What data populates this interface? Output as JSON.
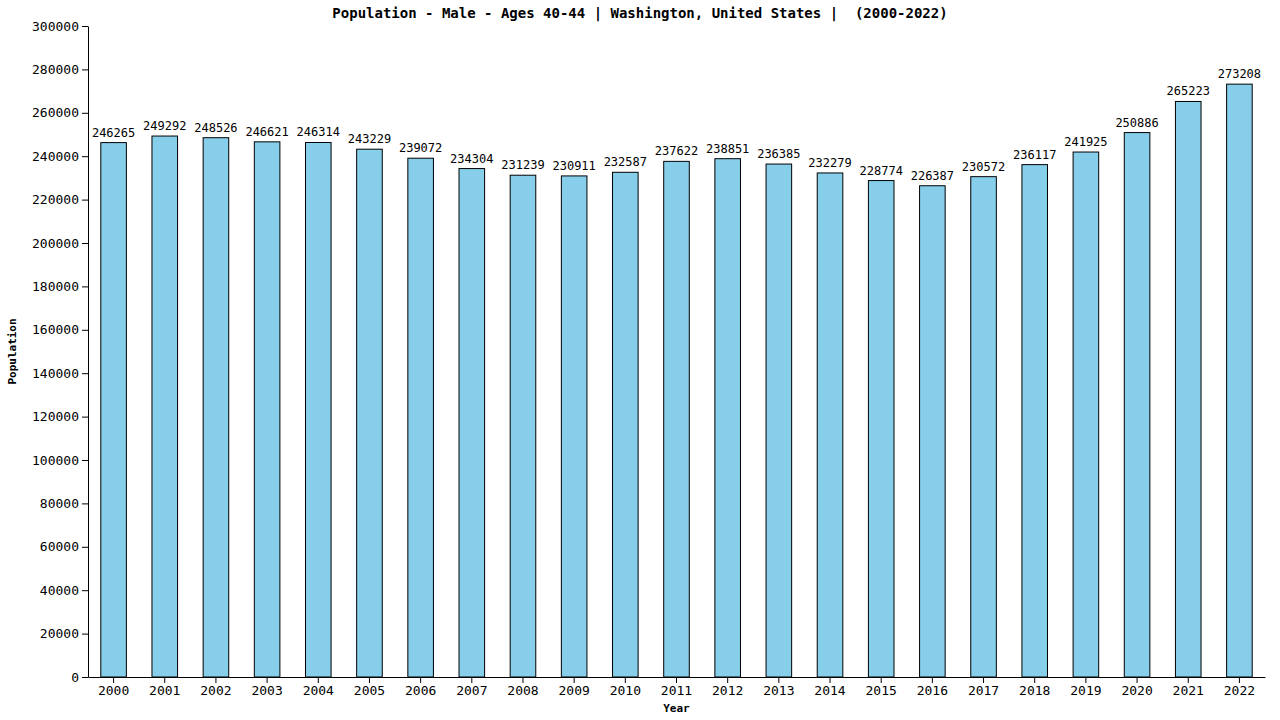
{
  "chart_data": {
    "type": "bar",
    "title": "Population - Male - Ages 40-44 | Washington, United States |  (2000-2022)",
    "x_label": "Year",
    "y_label": "Population",
    "categories": [
      "2000",
      "2001",
      "2002",
      "2003",
      "2004",
      "2005",
      "2006",
      "2007",
      "2008",
      "2009",
      "2010",
      "2011",
      "2012",
      "2013",
      "2014",
      "2015",
      "2016",
      "2017",
      "2018",
      "2019",
      "2020",
      "2021",
      "2022"
    ],
    "values": [
      246265,
      249292,
      248526,
      246621,
      246314,
      243229,
      239072,
      234304,
      231239,
      230911,
      232587,
      237622,
      238851,
      236385,
      232279,
      228774,
      226387,
      230572,
      236117,
      241925,
      250886,
      265223,
      273208
    ],
    "color": "#87ceeb",
    "ylim": [
      0,
      300000
    ],
    "yticks": [
      0,
      20000,
      40000,
      60000,
      80000,
      100000,
      120000,
      140000,
      160000,
      180000,
      200000,
      220000,
      240000,
      260000,
      280000,
      300000
    ],
    "grid": false,
    "data_labels": true
  }
}
